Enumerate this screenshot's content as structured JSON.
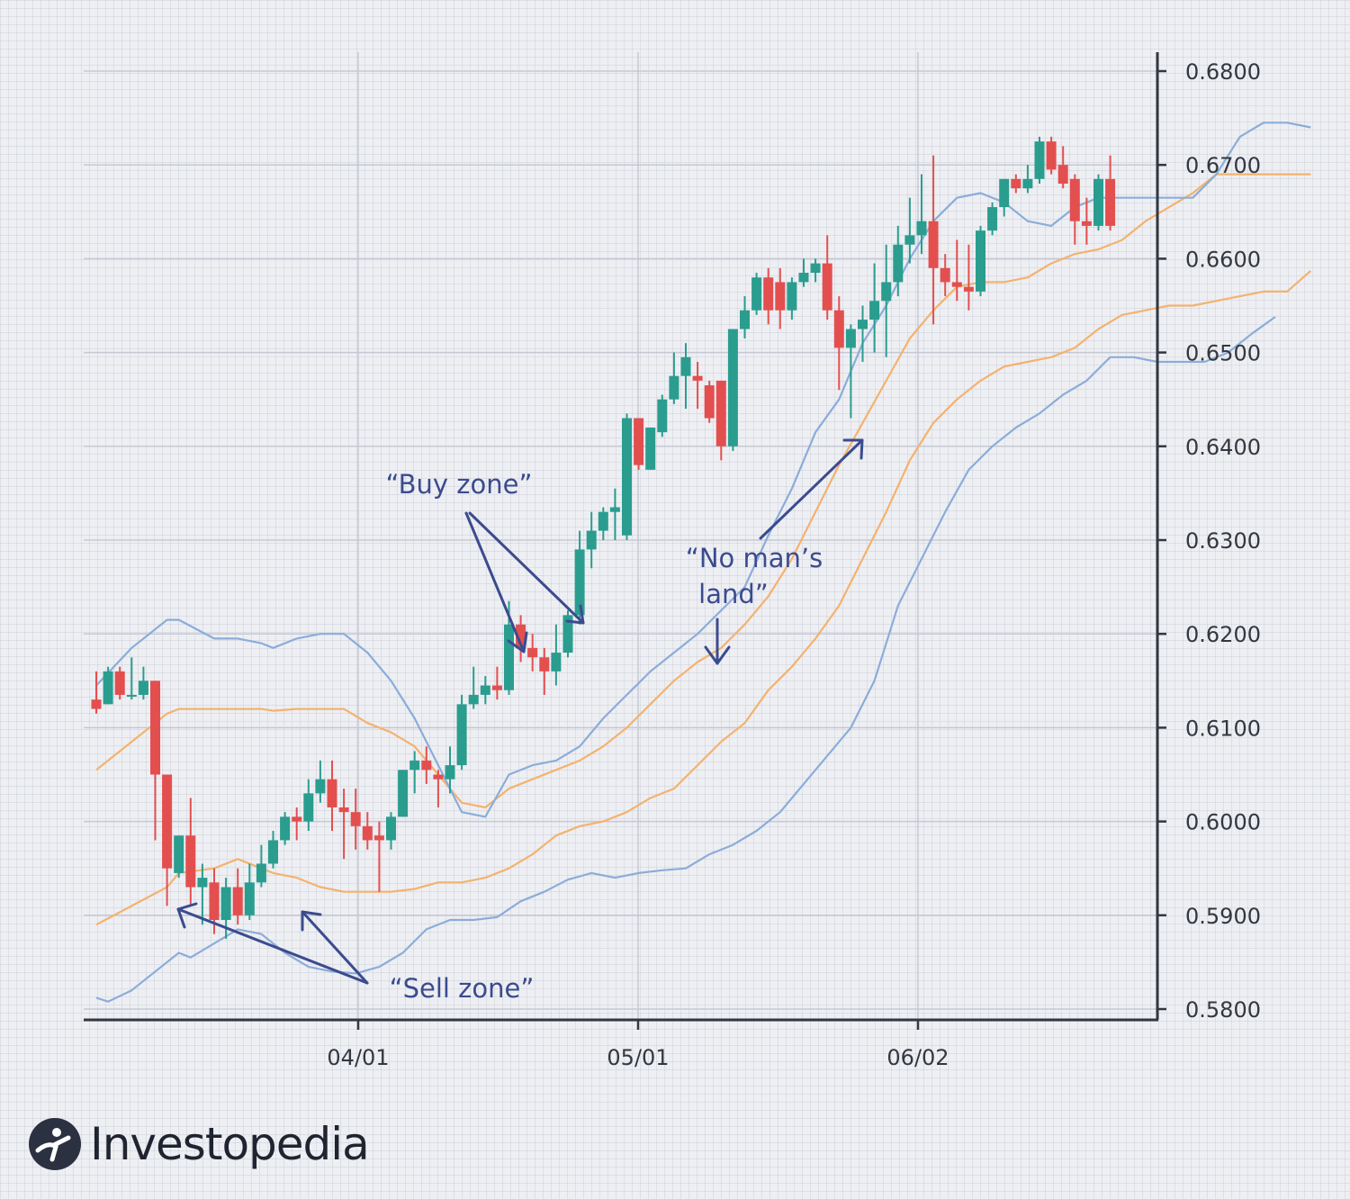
{
  "chart_data": {
    "type": "candlestick",
    "x_tick_labels": [
      "04/01",
      "05/01",
      "06/02"
    ],
    "y_ticks": [
      0.58,
      0.59,
      0.6,
      0.61,
      0.62,
      0.63,
      0.64,
      0.65,
      0.66,
      0.67,
      0.68
    ],
    "y_tick_labels": [
      "0.5800",
      "0.5900",
      "0.6000",
      "0.6100",
      "0.6200",
      "0.6300",
      "0.6400",
      "0.6500",
      "0.6600",
      "0.6700",
      "0.6800"
    ],
    "ylim": [
      0.579,
      0.686
    ],
    "y_axis_side": "right",
    "grid": true,
    "candles": [
      [
        0.613,
        0.616,
        0.612,
        0.6115
      ],
      [
        0.6125,
        0.6165,
        0.616,
        0.6125
      ],
      [
        0.616,
        0.6165,
        0.6135,
        0.613
      ],
      [
        0.6135,
        0.6175,
        0.6135,
        0.613
      ],
      [
        0.6135,
        0.6165,
        0.615,
        0.613
      ],
      [
        0.615,
        0.615,
        0.605,
        0.598
      ],
      [
        0.605,
        0.605,
        0.595,
        0.591
      ],
      [
        0.5945,
        0.5985,
        0.5985,
        0.594
      ],
      [
        0.5985,
        0.6025,
        0.593,
        0.591
      ],
      [
        0.593,
        0.5955,
        0.594,
        0.589
      ],
      [
        0.5935,
        0.595,
        0.5895,
        0.588
      ],
      [
        0.5895,
        0.594,
        0.593,
        0.5875
      ],
      [
        0.593,
        0.595,
        0.59,
        0.589
      ],
      [
        0.59,
        0.5955,
        0.5935,
        0.5895
      ],
      [
        0.5935,
        0.5975,
        0.5955,
        0.593
      ],
      [
        0.5955,
        0.599,
        0.598,
        0.595
      ],
      [
        0.598,
        0.601,
        0.6005,
        0.5975
      ],
      [
        0.6005,
        0.6015,
        0.6,
        0.598
      ],
      [
        0.6,
        0.6045,
        0.603,
        0.599
      ],
      [
        0.603,
        0.6065,
        0.6045,
        0.602
      ],
      [
        0.6045,
        0.6065,
        0.6015,
        0.599
      ],
      [
        0.6015,
        0.6035,
        0.601,
        0.596
      ],
      [
        0.601,
        0.6035,
        0.5995,
        0.597
      ],
      [
        0.5995,
        0.601,
        0.598,
        0.597
      ],
      [
        0.5985,
        0.6,
        0.598,
        0.5925
      ],
      [
        0.598,
        0.601,
        0.6005,
        0.597
      ],
      [
        0.6005,
        0.6055,
        0.6055,
        0.6005
      ],
      [
        0.6055,
        0.6075,
        0.6065,
        0.603
      ],
      [
        0.6065,
        0.608,
        0.6055,
        0.604
      ],
      [
        0.605,
        0.6055,
        0.6045,
        0.6015
      ],
      [
        0.6045,
        0.608,
        0.606,
        0.603
      ],
      [
        0.606,
        0.6135,
        0.6125,
        0.6055
      ],
      [
        0.6125,
        0.6165,
        0.6135,
        0.612
      ],
      [
        0.6135,
        0.6155,
        0.6145,
        0.6125
      ],
      [
        0.6145,
        0.6165,
        0.614,
        0.613
      ],
      [
        0.614,
        0.6235,
        0.621,
        0.6135
      ],
      [
        0.621,
        0.622,
        0.6185,
        0.617
      ],
      [
        0.6185,
        0.62,
        0.6175,
        0.616
      ],
      [
        0.6175,
        0.6185,
        0.616,
        0.6135
      ],
      [
        0.616,
        0.621,
        0.618,
        0.6145
      ],
      [
        0.618,
        0.6225,
        0.622,
        0.6175
      ],
      [
        0.622,
        0.631,
        0.629,
        0.621
      ],
      [
        0.629,
        0.633,
        0.631,
        0.627
      ],
      [
        0.631,
        0.6335,
        0.633,
        0.63
      ],
      [
        0.633,
        0.6355,
        0.6335,
        0.63
      ],
      [
        0.6305,
        0.6435,
        0.643,
        0.63
      ],
      [
        0.643,
        0.643,
        0.638,
        0.6375
      ],
      [
        0.6375,
        0.642,
        0.642,
        0.6375
      ],
      [
        0.6415,
        0.6455,
        0.645,
        0.641
      ],
      [
        0.645,
        0.65,
        0.6475,
        0.6445
      ],
      [
        0.6475,
        0.651,
        0.6495,
        0.644
      ],
      [
        0.6475,
        0.649,
        0.647,
        0.644
      ],
      [
        0.6465,
        0.647,
        0.643,
        0.6425
      ],
      [
        0.647,
        0.647,
        0.64,
        0.6385
      ],
      [
        0.64,
        0.6525,
        0.6525,
        0.6395
      ],
      [
        0.6525,
        0.656,
        0.6545,
        0.6515
      ],
      [
        0.6545,
        0.6585,
        0.658,
        0.654
      ],
      [
        0.658,
        0.659,
        0.6545,
        0.653
      ],
      [
        0.6575,
        0.659,
        0.6545,
        0.6525
      ],
      [
        0.6545,
        0.658,
        0.6575,
        0.6535
      ],
      [
        0.6575,
        0.66,
        0.6585,
        0.657
      ],
      [
        0.6585,
        0.66,
        0.6595,
        0.6575
      ],
      [
        0.6595,
        0.6625,
        0.6545,
        0.6535
      ],
      [
        0.6545,
        0.656,
        0.6505,
        0.646
      ],
      [
        0.6505,
        0.653,
        0.6525,
        0.643
      ],
      [
        0.6525,
        0.655,
        0.6535,
        0.649
      ],
      [
        0.6535,
        0.6595,
        0.6555,
        0.65
      ],
      [
        0.6555,
        0.6615,
        0.6575,
        0.6495
      ],
      [
        0.6575,
        0.6635,
        0.6615,
        0.656
      ],
      [
        0.6615,
        0.6665,
        0.6625,
        0.6595
      ],
      [
        0.6625,
        0.669,
        0.664,
        0.6605
      ],
      [
        0.664,
        0.671,
        0.659,
        0.653
      ],
      [
        0.659,
        0.6605,
        0.6575,
        0.656
      ],
      [
        0.6575,
        0.662,
        0.657,
        0.6555
      ],
      [
        0.657,
        0.6615,
        0.6565,
        0.6545
      ],
      [
        0.6565,
        0.6635,
        0.663,
        0.656
      ],
      [
        0.663,
        0.666,
        0.6655,
        0.6625
      ],
      [
        0.6655,
        0.6685,
        0.6685,
        0.6645
      ],
      [
        0.6685,
        0.669,
        0.6675,
        0.667
      ],
      [
        0.6675,
        0.67,
        0.6685,
        0.667
      ],
      [
        0.6685,
        0.673,
        0.6725,
        0.668
      ],
      [
        0.6725,
        0.673,
        0.6695,
        0.669
      ],
      [
        0.67,
        0.672,
        0.668,
        0.6675
      ],
      [
        0.6685,
        0.669,
        0.664,
        0.6615
      ],
      [
        0.664,
        0.6665,
        0.6635,
        0.6615
      ],
      [
        0.6635,
        0.669,
        0.6685,
        0.663
      ],
      [
        0.6685,
        0.671,
        0.6635,
        0.663
      ]
    ],
    "candle_format": [
      "open",
      "high",
      "close",
      "low"
    ],
    "upper_band": [
      [
        0,
        0.6145
      ],
      [
        3,
        0.6185
      ],
      [
        6,
        0.6215
      ],
      [
        7,
        0.6215
      ],
      [
        10,
        0.6195
      ],
      [
        12,
        0.6195
      ],
      [
        14,
        0.619
      ],
      [
        15,
        0.6185
      ],
      [
        17,
        0.6195
      ],
      [
        19,
        0.62
      ],
      [
        21,
        0.62
      ],
      [
        23,
        0.618
      ],
      [
        25,
        0.615
      ],
      [
        27,
        0.611
      ],
      [
        29,
        0.606
      ],
      [
        31,
        0.601
      ],
      [
        33,
        0.6005
      ],
      [
        35,
        0.605
      ],
      [
        37,
        0.606
      ],
      [
        39,
        0.6065
      ],
      [
        41,
        0.608
      ],
      [
        43,
        0.611
      ],
      [
        45,
        0.6135
      ],
      [
        47,
        0.616
      ],
      [
        49,
        0.618
      ],
      [
        51,
        0.62
      ],
      [
        53,
        0.6225
      ],
      [
        55,
        0.625
      ],
      [
        57,
        0.6305
      ],
      [
        59,
        0.6355
      ],
      [
        61,
        0.6415
      ],
      [
        63,
        0.645
      ],
      [
        65,
        0.651
      ],
      [
        67,
        0.655
      ],
      [
        69,
        0.66
      ],
      [
        71,
        0.664
      ],
      [
        73,
        0.6665
      ],
      [
        75,
        0.667
      ],
      [
        77,
        0.666
      ],
      [
        79,
        0.664
      ],
      [
        81,
        0.6635
      ],
      [
        83,
        0.6655
      ],
      [
        85,
        0.6665
      ],
      [
        87,
        0.6665
      ],
      [
        89,
        0.6665
      ],
      [
        91,
        0.6665
      ],
      [
        93,
        0.6665
      ],
      [
        95,
        0.669
      ],
      [
        97,
        0.673
      ],
      [
        99,
        0.6745
      ],
      [
        101,
        0.6745
      ],
      [
        103,
        0.674
      ]
    ],
    "middle_band": [
      [
        0,
        0.6055
      ],
      [
        3,
        0.6085
      ],
      [
        6,
        0.6115
      ],
      [
        7,
        0.612
      ],
      [
        10,
        0.612
      ],
      [
        12,
        0.612
      ],
      [
        14,
        0.612
      ],
      [
        15,
        0.6118
      ],
      [
        17,
        0.612
      ],
      [
        19,
        0.612
      ],
      [
        21,
        0.612
      ],
      [
        23,
        0.6105
      ],
      [
        25,
        0.6095
      ],
      [
        27,
        0.608
      ],
      [
        29,
        0.605
      ],
      [
        31,
        0.602
      ],
      [
        33,
        0.6015
      ],
      [
        35,
        0.6035
      ],
      [
        37,
        0.6045
      ],
      [
        39,
        0.6055
      ],
      [
        41,
        0.6065
      ],
      [
        43,
        0.608
      ],
      [
        45,
        0.61
      ],
      [
        47,
        0.6125
      ],
      [
        49,
        0.615
      ],
      [
        51,
        0.617
      ],
      [
        53,
        0.6185
      ],
      [
        55,
        0.621
      ],
      [
        57,
        0.624
      ],
      [
        59,
        0.628
      ],
      [
        61,
        0.633
      ],
      [
        63,
        0.638
      ],
      [
        65,
        0.6425
      ],
      [
        67,
        0.647
      ],
      [
        69,
        0.6515
      ],
      [
        71,
        0.6545
      ],
      [
        73,
        0.657
      ],
      [
        75,
        0.6575
      ],
      [
        77,
        0.6575
      ],
      [
        79,
        0.658
      ],
      [
        81,
        0.6595
      ],
      [
        83,
        0.6605
      ],
      [
        85,
        0.661
      ],
      [
        87,
        0.662
      ],
      [
        89,
        0.664
      ],
      [
        91,
        0.6655
      ],
      [
        93,
        0.667
      ],
      [
        95,
        0.669
      ],
      [
        97,
        0.669
      ],
      [
        99,
        0.669
      ],
      [
        101,
        0.669
      ],
      [
        103,
        0.669
      ]
    ],
    "lower_band": [
      [
        0,
        0.589
      ],
      [
        3,
        0.591
      ],
      [
        6,
        0.593
      ],
      [
        7,
        0.5945
      ],
      [
        10,
        0.595
      ],
      [
        12,
        0.596
      ],
      [
        14,
        0.595
      ],
      [
        15,
        0.5945
      ],
      [
        17,
        0.594
      ],
      [
        19,
        0.593
      ],
      [
        21,
        0.5925
      ],
      [
        23,
        0.5925
      ],
      [
        25,
        0.5925
      ],
      [
        27,
        0.5928
      ],
      [
        29,
        0.5935
      ],
      [
        31,
        0.5935
      ],
      [
        33,
        0.594
      ],
      [
        35,
        0.595
      ],
      [
        37,
        0.5965
      ],
      [
        39,
        0.5985
      ],
      [
        41,
        0.5995
      ],
      [
        43,
        0.6
      ],
      [
        45,
        0.601
      ],
      [
        47,
        0.6025
      ],
      [
        49,
        0.6035
      ],
      [
        51,
        0.606
      ],
      [
        53,
        0.6085
      ],
      [
        55,
        0.6105
      ],
      [
        57,
        0.614
      ],
      [
        59,
        0.6165
      ],
      [
        61,
        0.6195
      ],
      [
        63,
        0.623
      ],
      [
        65,
        0.628
      ],
      [
        67,
        0.633
      ],
      [
        69,
        0.6385
      ],
      [
        71,
        0.6425
      ],
      [
        73,
        0.645
      ],
      [
        75,
        0.647
      ],
      [
        77,
        0.6485
      ],
      [
        79,
        0.649
      ],
      [
        81,
        0.6495
      ],
      [
        83,
        0.6505
      ],
      [
        85,
        0.6525
      ],
      [
        87,
        0.654
      ],
      [
        89,
        0.6545
      ],
      [
        91,
        0.655
      ],
      [
        93,
        0.655
      ],
      [
        95,
        0.6555
      ],
      [
        97,
        0.656
      ],
      [
        99,
        0.6565
      ],
      [
        101,
        0.6565
      ],
      [
        103,
        0.6587
      ]
    ],
    "outer_lower_band": [
      [
        0,
        0.5812
      ],
      [
        1,
        0.5808
      ],
      [
        3,
        0.582
      ],
      [
        5,
        0.584
      ],
      [
        7,
        0.586
      ],
      [
        8,
        0.5855
      ],
      [
        10,
        0.587
      ],
      [
        12,
        0.5885
      ],
      [
        14,
        0.588
      ],
      [
        16,
        0.586
      ],
      [
        18,
        0.5845
      ],
      [
        20,
        0.584
      ],
      [
        22,
        0.5838
      ],
      [
        24,
        0.5845
      ],
      [
        26,
        0.586
      ],
      [
        28,
        0.5885
      ],
      [
        30,
        0.5895
      ],
      [
        32,
        0.5895
      ],
      [
        34,
        0.5898
      ],
      [
        36,
        0.5915
      ],
      [
        38,
        0.5925
      ],
      [
        40,
        0.5938
      ],
      [
        42,
        0.5945
      ],
      [
        44,
        0.594
      ],
      [
        46,
        0.5945
      ],
      [
        48,
        0.5948
      ],
      [
        50,
        0.595
      ],
      [
        52,
        0.5965
      ],
      [
        54,
        0.5975
      ],
      [
        56,
        0.599
      ],
      [
        58,
        0.601
      ],
      [
        60,
        0.604
      ],
      [
        62,
        0.607
      ],
      [
        64,
        0.61
      ],
      [
        66,
        0.615
      ],
      [
        68,
        0.623
      ],
      [
        70,
        0.628
      ],
      [
        72,
        0.633
      ],
      [
        74,
        0.6375
      ],
      [
        76,
        0.64
      ],
      [
        78,
        0.642
      ],
      [
        80,
        0.6435
      ],
      [
        82,
        0.6455
      ],
      [
        84,
        0.647
      ],
      [
        86,
        0.6495
      ],
      [
        88,
        0.6495
      ],
      [
        90,
        0.649
      ],
      [
        92,
        0.649
      ],
      [
        94,
        0.649
      ],
      [
        96,
        0.65
      ],
      [
        98,
        0.652
      ],
      [
        100,
        0.6538
      ]
    ],
    "annotations": [
      {
        "text": "“Buy zone”"
      },
      {
        "text": "“No man’s"
      },
      {
        "text": "land”"
      },
      {
        "text": "“Sell zone”"
      }
    ],
    "colors": {
      "bull": "#2a9d8f",
      "bear": "#e34f4f",
      "band_blue": "#8aadd9",
      "band_orange": "#f4b26e",
      "annotation": "#3b4b8e",
      "axis": "#333740",
      "grid": "#c6c8d4"
    }
  },
  "logo": {
    "text": "Investopedia"
  }
}
